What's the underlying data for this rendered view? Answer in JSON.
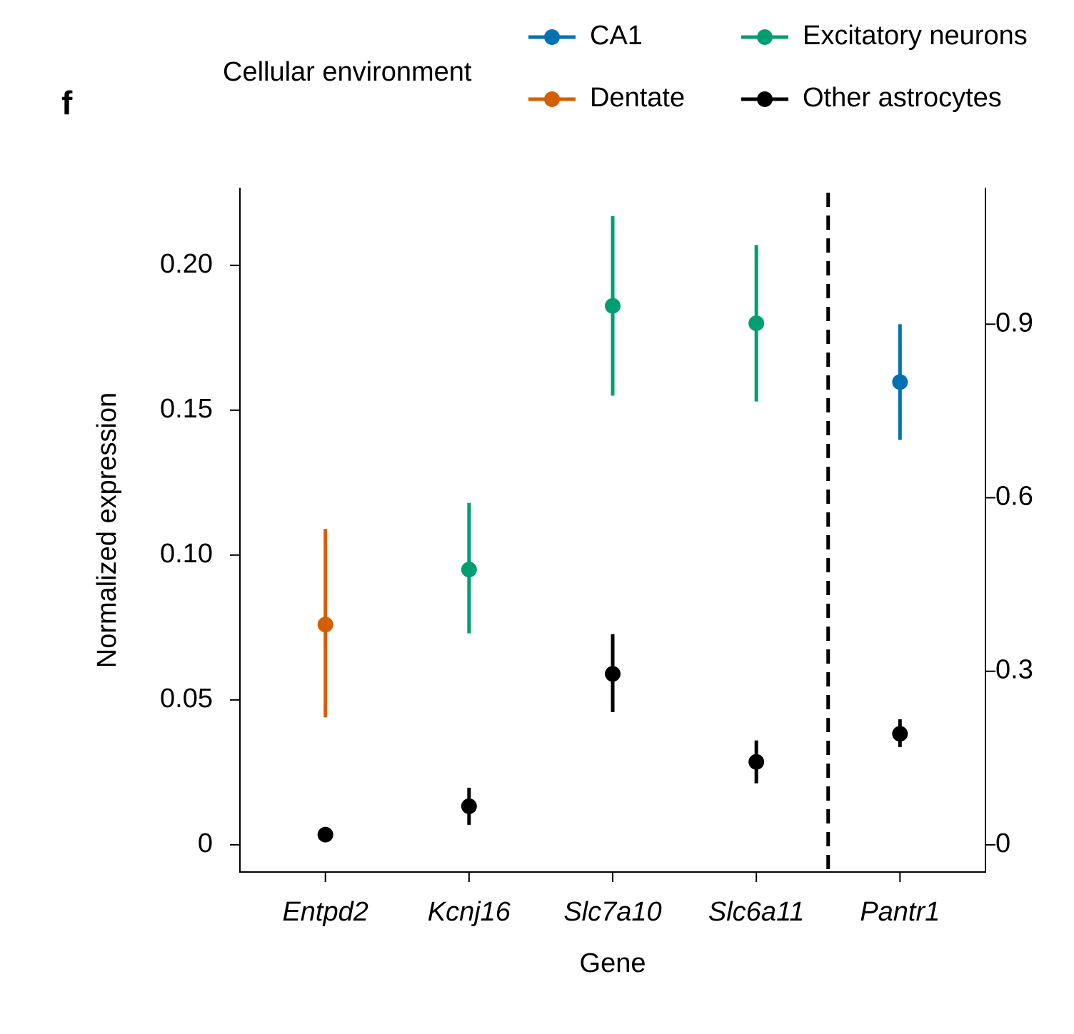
{
  "chart_data": {
    "type": "pointrange",
    "panel_label": "f",
    "legend_title": "Cellular environment",
    "x_label": "Gene",
    "y_label": "Normalized expression",
    "categories": [
      "Entpd2",
      "Kcnj16",
      "Slc7a10",
      "Slc6a11",
      "Pantr1"
    ],
    "axis_by_category": [
      "y",
      "y",
      "y",
      "y",
      "y2"
    ],
    "ylim": [
      -0.0094,
      0.2268
    ],
    "yticks": [
      0,
      0.05,
      {
        "value": 0.1,
        "label": "0.10"
      },
      0.15,
      {
        "value": 0.2,
        "label": "0.20"
      }
    ],
    "y2lim": [
      -0.047,
      1.136
    ],
    "y2ticks": [
      0,
      0.3,
      0.6,
      0.9
    ],
    "series": [
      {
        "name": "CA1",
        "color": "#0072b2",
        "values": [
          null,
          null,
          null,
          null,
          0.8
        ],
        "lower": [
          null,
          null,
          null,
          null,
          0.7
        ],
        "upper": [
          null,
          null,
          null,
          null,
          0.9
        ]
      },
      {
        "name": "Dentate",
        "color": "#d55e00",
        "values": [
          0.076,
          null,
          null,
          null,
          null
        ],
        "lower": [
          0.044,
          null,
          null,
          null,
          null
        ],
        "upper": [
          0.109,
          null,
          null,
          null,
          null
        ]
      },
      {
        "name": "Excitatory neurons",
        "color": "#009e73",
        "values": [
          null,
          0.095,
          0.186,
          0.18,
          null
        ],
        "lower": [
          null,
          0.073,
          0.155,
          0.153,
          null
        ],
        "upper": [
          null,
          0.118,
          0.217,
          0.207,
          null
        ]
      },
      {
        "name": "Other astrocytes",
        "color": "#000000",
        "values": [
          0.0035,
          0.0133,
          0.059,
          0.0286,
          0.192
        ],
        "lower": [
          0.001,
          0.0069,
          0.0458,
          0.0212,
          0.169
        ],
        "upper": [
          0.006,
          0.0197,
          0.0727,
          0.036,
          0.217
        ]
      }
    ]
  }
}
